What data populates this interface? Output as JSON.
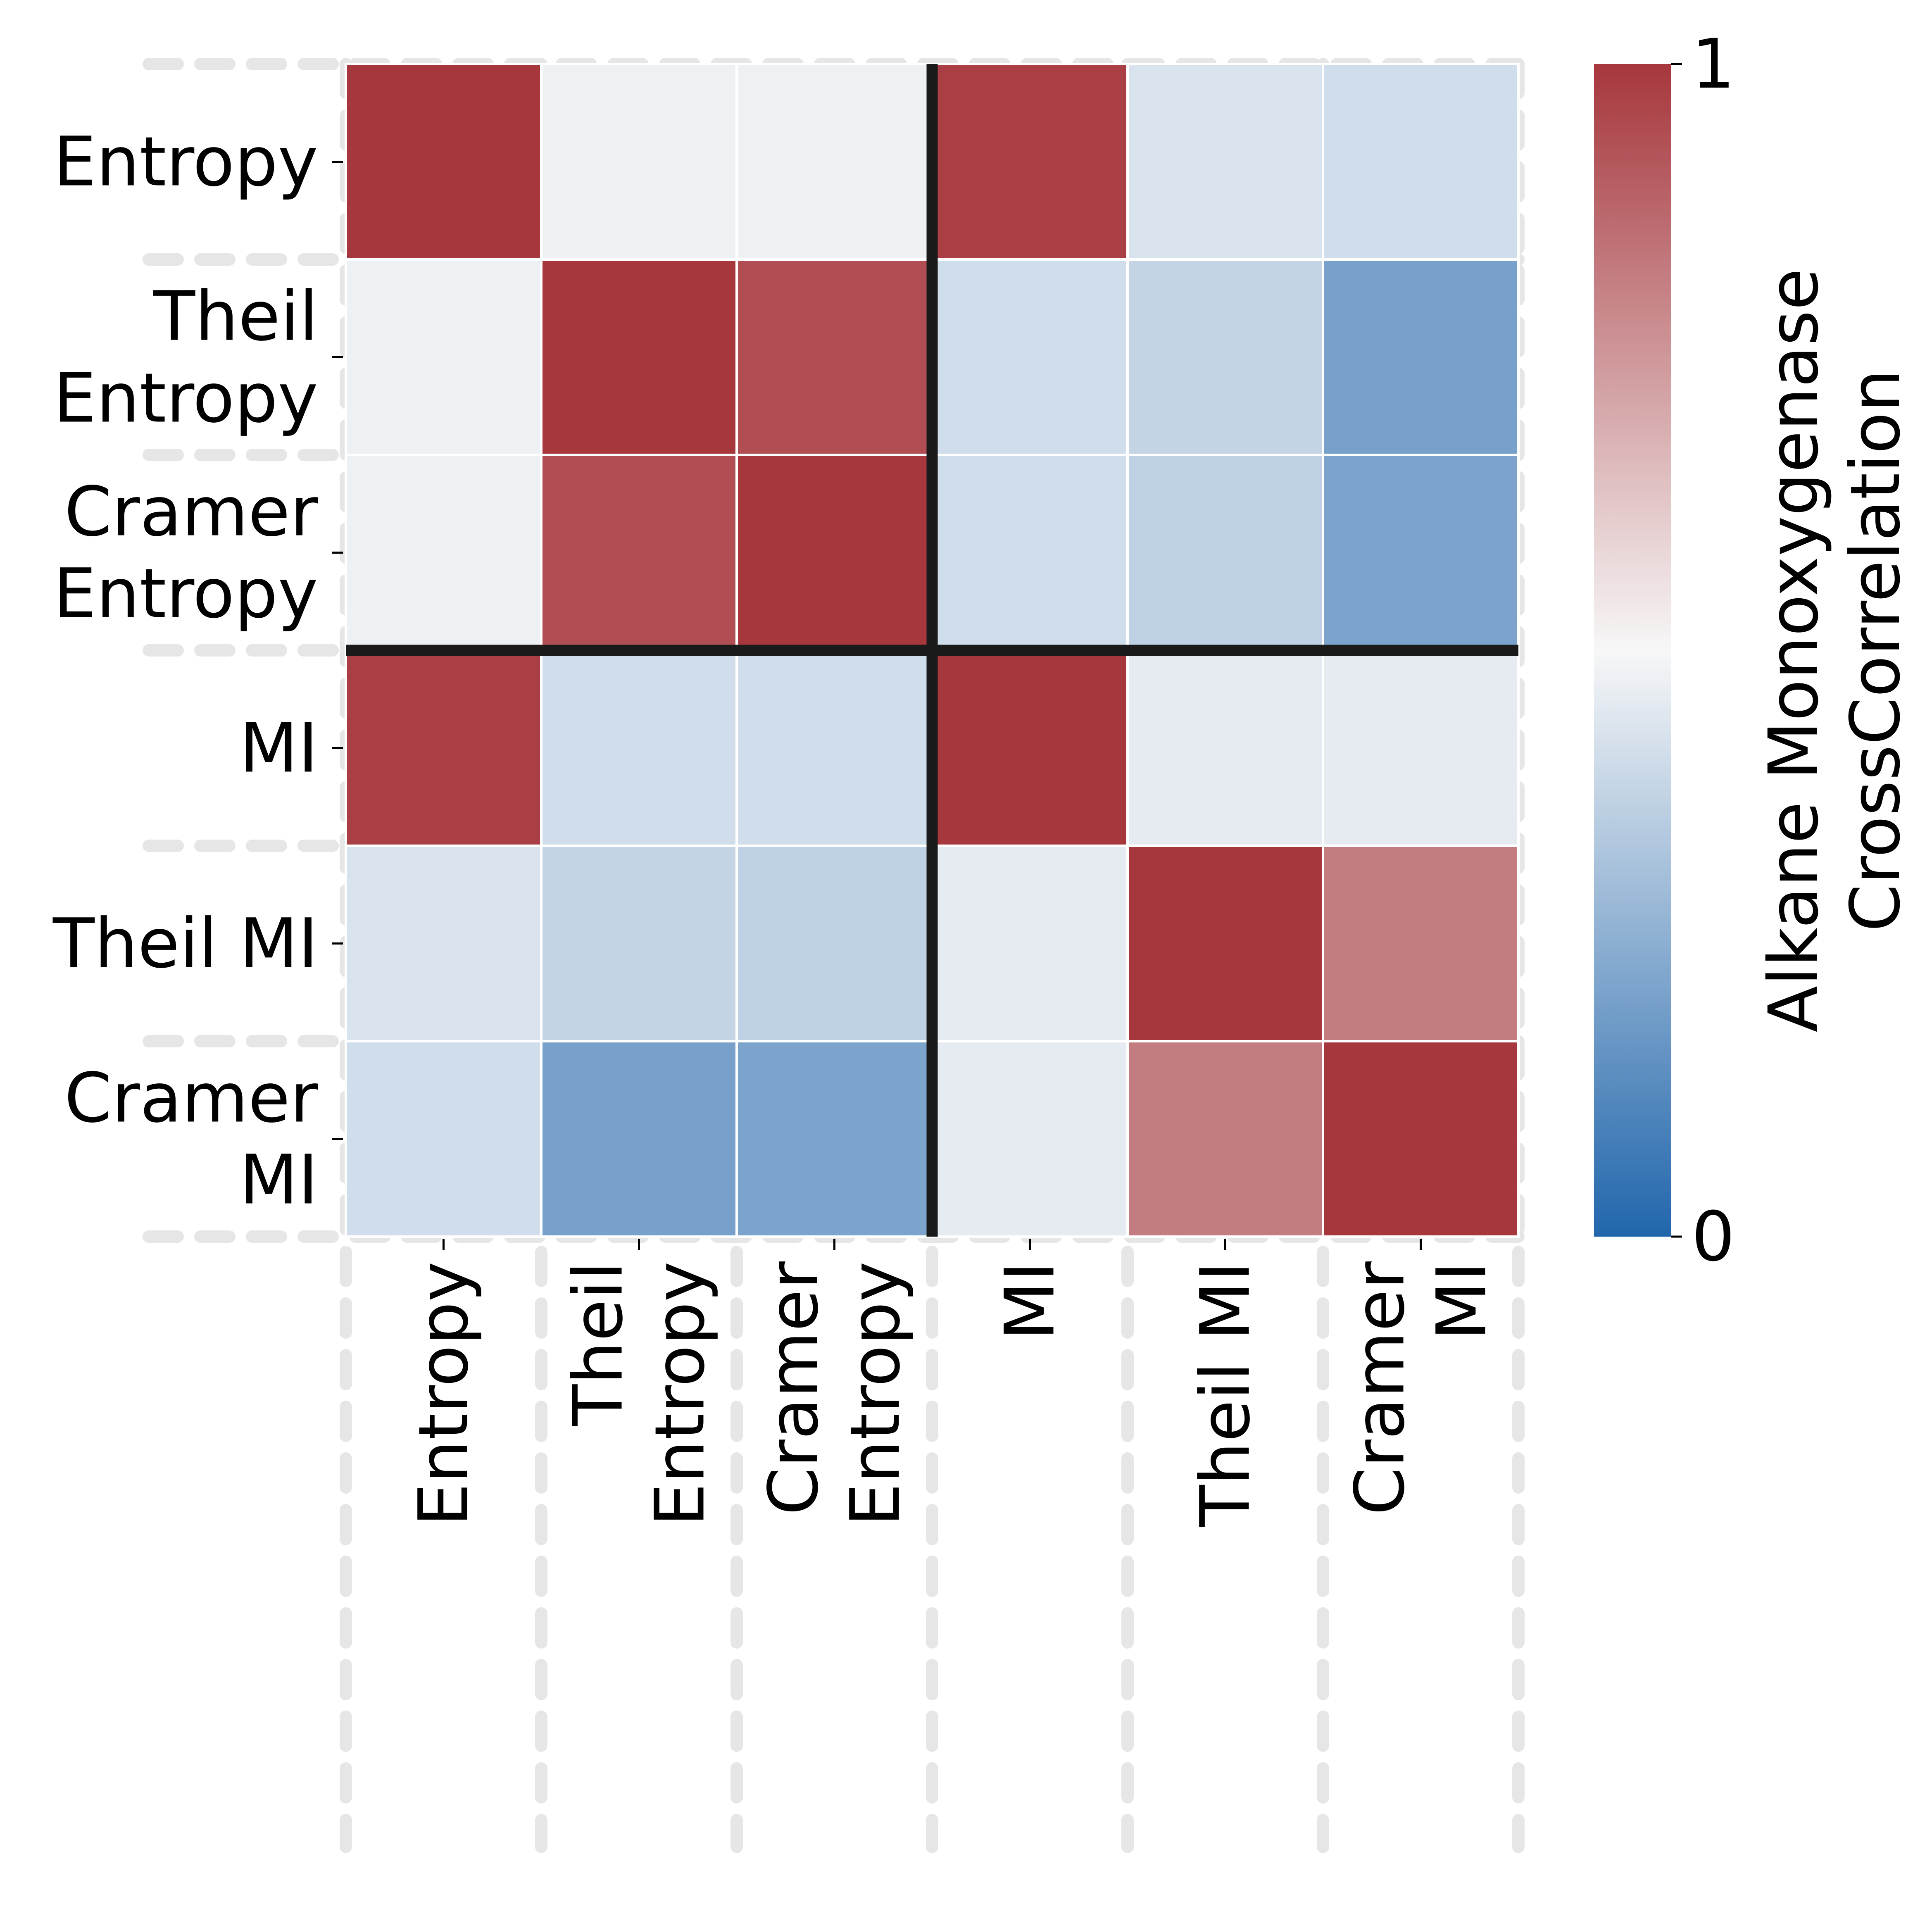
{
  "chart_data": {
    "type": "heatmap",
    "rows": [
      [
        "Entropy"
      ],
      [
        "Theil",
        "Entropy"
      ],
      [
        "Cramer",
        "Entropy"
      ],
      [
        "MI"
      ],
      [
        "Theil MI"
      ],
      [
        "Cramer",
        "MI"
      ]
    ],
    "columns": [
      [
        "Entropy"
      ],
      [
        "Theil",
        "Entropy"
      ],
      [
        "Cramer",
        "Entropy"
      ],
      [
        "MI"
      ],
      [
        "Theil MI"
      ],
      [
        "Cramer",
        "MI"
      ]
    ],
    "values": [
      [
        1.0,
        0.48,
        0.48,
        0.98,
        0.43,
        0.41
      ],
      [
        0.48,
        1.0,
        0.94,
        0.41,
        0.38,
        0.2
      ],
      [
        0.48,
        0.94,
        1.0,
        0.41,
        0.37,
        0.21
      ],
      [
        0.98,
        0.41,
        0.41,
        1.0,
        0.46,
        0.46
      ],
      [
        0.43,
        0.38,
        0.37,
        0.46,
        1.0,
        0.82
      ],
      [
        0.41,
        0.2,
        0.21,
        0.46,
        0.82,
        1.0
      ]
    ],
    "colorbar": {
      "label": [
        "Alkane Monoxygenase",
        "CrossCorrelation"
      ],
      "range": [
        0,
        1
      ],
      "ticks": [
        "0",
        "1"
      ],
      "colors": [
        "#2166ac",
        "#f7f7f7",
        "#a6373d"
      ]
    },
    "block_separator_after_index": 3,
    "grid": "dashed",
    "colors": {
      "separator": "#1a1a1a",
      "gridline": "#e6e6e6",
      "cell_border": "#ffffff"
    }
  }
}
